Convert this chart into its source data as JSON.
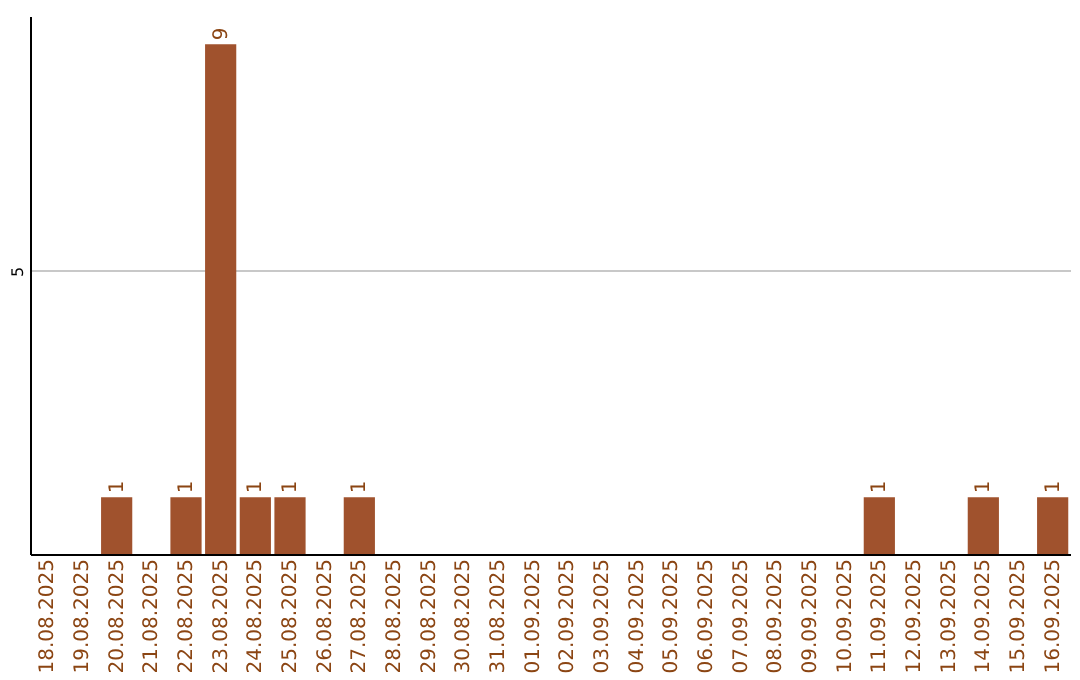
{
  "chart_data": {
    "type": "bar",
    "categories": [
      "18.08.2025",
      "19.08.2025",
      "20.08.2025",
      "21.08.2025",
      "22.08.2025",
      "23.08.2025",
      "24.08.2025",
      "25.08.2025",
      "26.08.2025",
      "27.08.2025",
      "28.08.2025",
      "29.08.2025",
      "30.08.2025",
      "31.08.2025",
      "01.09.2025",
      "02.09.2025",
      "03.09.2025",
      "04.09.2025",
      "05.09.2025",
      "06.09.2025",
      "07.09.2025",
      "08.09.2025",
      "09.09.2025",
      "10.09.2025",
      "11.09.2025",
      "12.09.2025",
      "13.09.2025",
      "14.09.2025",
      "15.09.2025",
      "16.09.2025"
    ],
    "values": [
      0,
      0,
      1,
      0,
      1,
      9,
      1,
      1,
      0,
      1,
      0,
      0,
      0,
      0,
      0,
      0,
      0,
      0,
      0,
      0,
      0,
      0,
      0,
      0,
      1,
      0,
      0,
      1,
      0,
      1
    ],
    "value_labels": [
      null,
      null,
      "1",
      null,
      "1",
      "9",
      "1",
      "1",
      null,
      "1",
      null,
      null,
      null,
      null,
      null,
      null,
      null,
      null,
      null,
      null,
      null,
      null,
      null,
      null,
      "1",
      null,
      null,
      "1",
      null,
      "1"
    ],
    "color": "#a0522d",
    "ylim": [
      0,
      9.5
    ],
    "yticks": [
      5
    ],
    "grid": "y"
  }
}
